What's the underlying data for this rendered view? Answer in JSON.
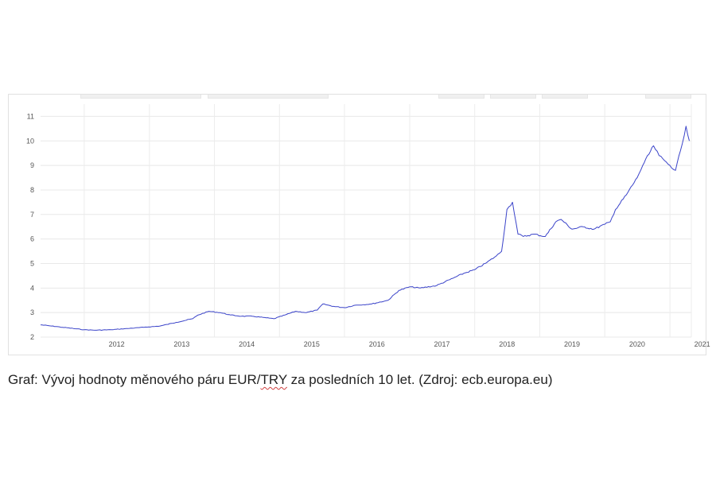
{
  "chart_data": {
    "type": "line",
    "title": "",
    "xlabel": "",
    "ylabel": "",
    "ylim": [
      2,
      11.5
    ],
    "xlim": [
      "2011-05-01",
      "2021-05-01"
    ],
    "y_ticks": [
      "2",
      "3",
      "4",
      "5",
      "6",
      "7",
      "8",
      "9",
      "10",
      "11"
    ],
    "x_ticks": [
      "2012",
      "2013",
      "2014",
      "2015",
      "2016",
      "2017",
      "2018",
      "2019",
      "2020",
      "2021"
    ],
    "grid": true,
    "series_color": "#3a43c9",
    "series": [
      {
        "x": [
          "2011-05-01",
          "2011-07-01",
          "2011-09-01",
          "2011-11-01",
          "2012-01-01",
          "2012-03-01",
          "2012-06-01",
          "2012-09-01",
          "2012-12-01",
          "2013-03-01",
          "2013-06-01",
          "2013-09-01",
          "2013-10-01",
          "2013-12-01",
          "2014-02-01",
          "2014-04-01",
          "2014-06-01",
          "2014-08-01",
          "2014-10-01",
          "2014-12-01",
          "2015-02-01",
          "2015-04-01",
          "2015-06-01",
          "2015-08-01",
          "2015-09-01",
          "2015-11-01",
          "2016-01-01",
          "2016-03-01",
          "2016-06-01",
          "2016-09-01",
          "2016-11-01",
          "2017-01-01",
          "2017-03-01",
          "2017-06-01",
          "2017-09-01",
          "2017-11-01",
          "2018-01-01",
          "2018-03-01",
          "2018-05-01",
          "2018-06-01",
          "2018-07-01",
          "2018-08-01",
          "2018-09-01",
          "2018-10-01",
          "2018-12-01",
          "2019-02-01",
          "2019-04-01",
          "2019-05-01",
          "2019-07-01",
          "2019-09-01",
          "2019-11-01",
          "2020-01-01",
          "2020-02-01",
          "2020-03-01",
          "2020-05-01",
          "2020-07-01",
          "2020-08-01",
          "2020-10-01",
          "2020-11-01",
          "2020-12-01",
          "2021-01-01",
          "2021-02-01",
          "2021-03-01",
          "2021-04-01",
          "2021-04-20"
        ],
        "y": [
          2.5,
          2.45,
          2.4,
          2.35,
          2.3,
          2.28,
          2.3,
          2.35,
          2.4,
          2.45,
          2.6,
          2.75,
          2.9,
          3.05,
          3.0,
          2.9,
          2.85,
          2.85,
          2.8,
          2.75,
          2.9,
          3.05,
          3.0,
          3.1,
          3.35,
          3.25,
          3.2,
          3.3,
          3.35,
          3.5,
          3.9,
          4.05,
          4.0,
          4.1,
          4.4,
          4.6,
          4.75,
          5.0,
          5.3,
          5.5,
          7.2,
          7.5,
          6.2,
          6.1,
          6.2,
          6.1,
          6.7,
          6.8,
          6.4,
          6.5,
          6.4,
          6.6,
          6.7,
          7.2,
          7.8,
          8.5,
          9.0,
          9.8,
          9.4,
          9.2,
          9.0,
          8.8,
          9.6,
          10.6,
          10.0
        ]
      }
    ]
  },
  "caption": {
    "before": "Graf: Vývoj hodnoty měnového páru EUR/",
    "marked": "TRY",
    "after": " za posledních 10 let. (Zdroj: ecb.europa.eu)"
  }
}
